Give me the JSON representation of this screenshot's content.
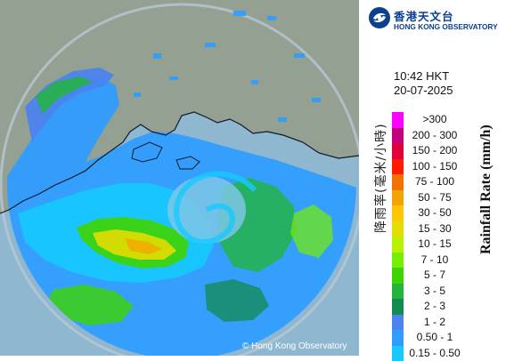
{
  "map": {
    "copyright": "© Hong Kong Observatory",
    "colors": {
      "sea": "#8fb7d0",
      "land": "#93a092",
      "range_ring": "#b7c8d4",
      "coastline": "#0d1a2a"
    }
  },
  "header": {
    "logo_chinese": "香港天文台",
    "logo_english": "HONG KONG OBSERVATORY",
    "logo_color": "#0b3f8f"
  },
  "timestamp": {
    "time": "10:42 HKT",
    "date": "20-07-2025"
  },
  "legend": {
    "title_chinese": "降雨率(毫米/小時)",
    "title_english": "Rainfall Rate (mm/h)",
    "items": [
      {
        "range": ">300",
        "color": "#ff00ff"
      },
      {
        "range": "200 - 300",
        "color": "#c3007f"
      },
      {
        "range": "150 - 200",
        "color": "#e4003a"
      },
      {
        "range": "100 - 150",
        "color": "#ff1a00"
      },
      {
        "range": "75 - 100",
        "color": "#f27200"
      },
      {
        "range": "50 - 75",
        "color": "#f5a300"
      },
      {
        "range": "30 - 50",
        "color": "#ffc700"
      },
      {
        "range": "15 - 30",
        "color": "#e3dd00"
      },
      {
        "range": "10 - 15",
        "color": "#b9f200"
      },
      {
        "range": "7 - 10",
        "color": "#76ee00"
      },
      {
        "range": "5 - 7",
        "color": "#3ed400"
      },
      {
        "range": "3 - 5",
        "color": "#22b43c"
      },
      {
        "range": "2 - 3",
        "color": "#138a4e"
      },
      {
        "range": "1 - 2",
        "color": "#4b84f0"
      },
      {
        "range": "0.50 - 1",
        "color": "#2f9dff"
      },
      {
        "range": "0.15 - 0.50",
        "color": "#16c9ff"
      }
    ]
  }
}
